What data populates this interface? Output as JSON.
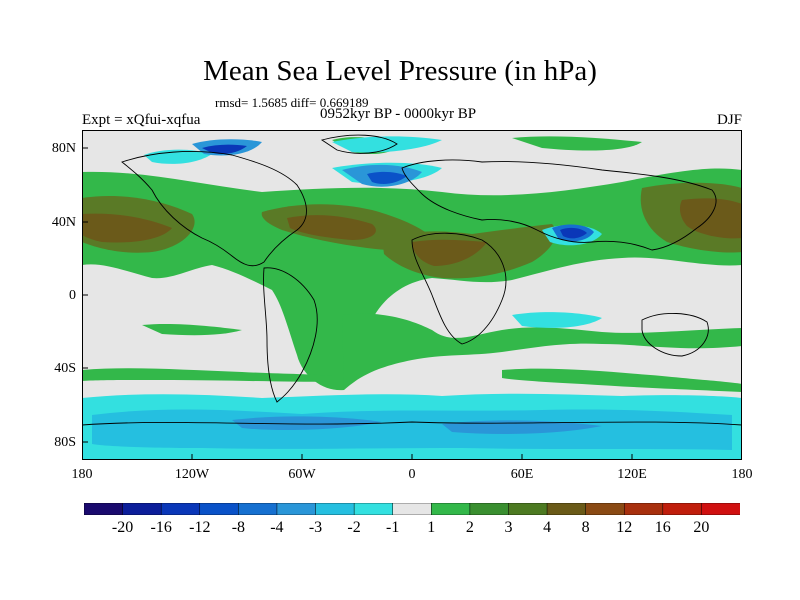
{
  "title": "Mean Sea Level Pressure (in hPa)",
  "stats": "rmsd= 1.5685 diff= 0.669189",
  "experiment": "Expt = xQfui-xqfua",
  "period": "0952kyr BP - 0000kyr BP",
  "season": "DJF",
  "lat_ticks": [
    "80N",
    "40N",
    "0",
    "40S",
    "80S"
  ],
  "lon_ticks": [
    "180",
    "120W",
    "60W",
    "0",
    "60E",
    "120E",
    "180"
  ],
  "colorbar": {
    "labels": [
      "-20",
      "-16",
      "-12",
      "-8",
      "-4",
      "-3",
      "-2",
      "-1",
      "1",
      "2",
      "3",
      "4",
      "8",
      "12",
      "16",
      "20"
    ],
    "colors": [
      "#1a0a6e",
      "#0c1e9a",
      "#0a37b8",
      "#0a52c8",
      "#1670d0",
      "#2a96d8",
      "#25bfe0",
      "#33e0e0",
      "#e6e6e6",
      "#33b84a",
      "#3a8f30",
      "#4d7a22",
      "#6a5a18",
      "#8a4a14",
      "#a8300e",
      "#c01e0c",
      "#d01010"
    ]
  }
}
